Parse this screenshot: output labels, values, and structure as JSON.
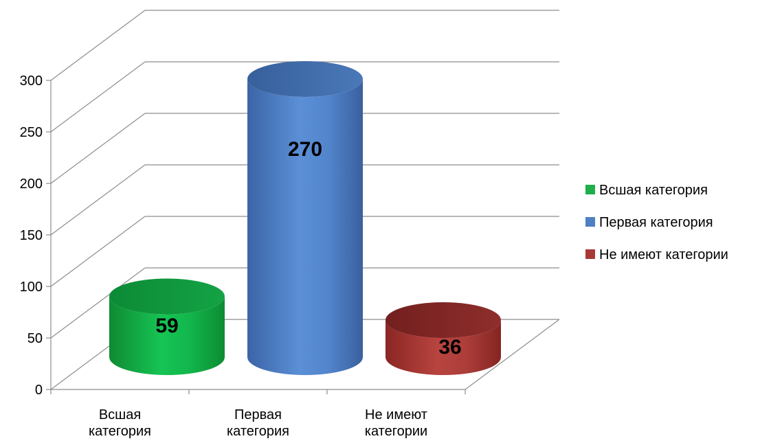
{
  "chart_data": {
    "type": "bar",
    "style": "3d-cylinder",
    "title": "",
    "xlabel": "",
    "ylabel": "",
    "categories": [
      [
        "Всшая",
        "категория"
      ],
      [
        "Первая",
        "категория"
      ],
      [
        "Не имеют",
        "категории"
      ]
    ],
    "values": [
      59,
      270,
      36
    ],
    "bar_colors": [
      "#1fae4a",
      "#4f7fc4",
      "#a83a36"
    ],
    "ylim": [
      0,
      300
    ],
    "yticks": [
      0,
      50,
      100,
      150,
      200,
      250,
      300
    ],
    "grid": true,
    "legend": {
      "position": "right",
      "entries": [
        {
          "label": "Всшая категория",
          "color": "#1fae4a"
        },
        {
          "label": "Первая категория",
          "color": "#4f7fc4"
        },
        {
          "label": "Не имеют категории",
          "color": "#a83a36"
        }
      ]
    }
  }
}
